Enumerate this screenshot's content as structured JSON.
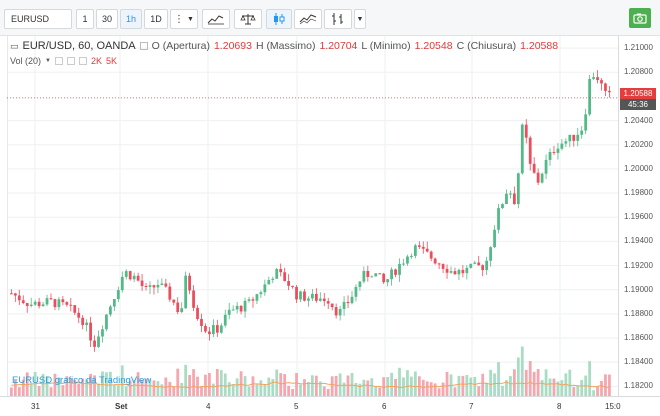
{
  "toolbar": {
    "symbol": "EURUSD",
    "intervals": [
      "1",
      "30",
      "1h",
      "1D"
    ],
    "active_interval": "1h",
    "more_icon": "vertical-dots-icon",
    "dropdown_icon": "caret-down-icon",
    "chart_type_icon": "line-chart-icon",
    "compare_icon": "balance-scale-icon",
    "candles_icon": "candlestick-icon",
    "area_icon": "area-chart-icon",
    "bars_icon": "bars-icon",
    "camera_icon": "camera-icon"
  },
  "legend": {
    "title": "EUR/USD, 60, OANDA",
    "open_label": "O (Apertura)",
    "open_value": "1.20693",
    "high_label": "H (Massimo)",
    "high_value": "1.20704",
    "low_label": "L (Minimo)",
    "low_value": "1.20548",
    "close_label": "C (Chiusura)",
    "close_value": "1.20588"
  },
  "volume_legend": {
    "label": "Vol (20)",
    "v1": "2K",
    "v2": "5K"
  },
  "price_tag": "1.20588",
  "time_tag": "45:36",
  "watermark": "EURUSD grafico da TradingView",
  "colors": {
    "up": "#53b987",
    "down": "#eb4d5c",
    "accent": "#2196f3",
    "camera": "#4caf50",
    "volume_ma": "#f5a25d"
  },
  "chart_data": {
    "type": "candlestick",
    "y_ticks": [
      "1.21000",
      "1.20800",
      "1.20400",
      "1.20200",
      "1.20000",
      "1.19800",
      "1.19600",
      "1.19400",
      "1.19200",
      "1.19000",
      "1.18800",
      "1.18600",
      "1.18400",
      "1.18200"
    ],
    "y_tick_values": [
      1.21,
      1.208,
      1.204,
      1.202,
      1.2,
      1.198,
      1.196,
      1.194,
      1.192,
      1.19,
      1.188,
      1.186,
      1.184,
      1.182
    ],
    "ylim": [
      1.1812,
      1.211
    ],
    "x_labels": [
      "31",
      "Set",
      "4",
      "5",
      "6",
      "7",
      "8",
      "15:0"
    ],
    "last_price": 1.20588
  }
}
